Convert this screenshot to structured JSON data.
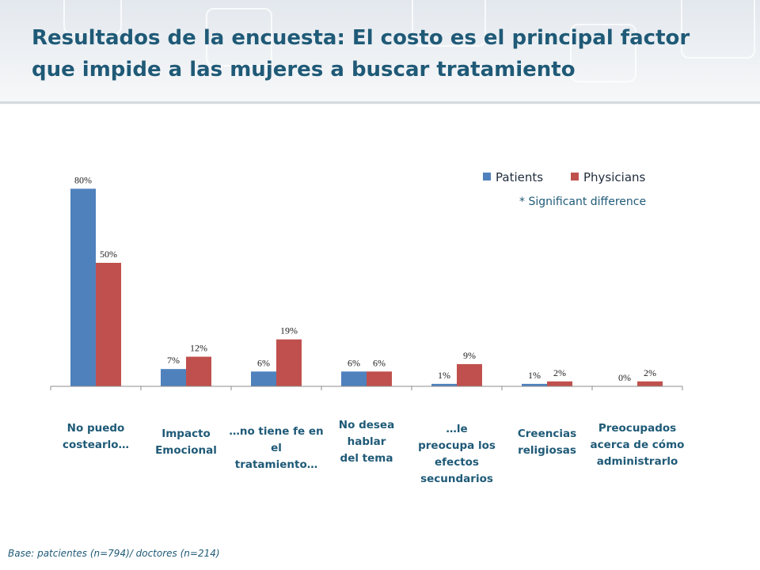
{
  "title": {
    "line1": "Resultados de la encuesta: El costo es el principal factor",
    "line2": "que impide a las mujeres a buscar tratamiento"
  },
  "note": "* Significant difference",
  "base_note": "Base: patcientes (n=794)/ doctores (n=214)",
  "colors": {
    "patients": "#4f81bd",
    "physicians": "#c0504d",
    "title": "#1f5a77"
  },
  "chart_data": {
    "type": "bar",
    "categories": [
      "No puedo costearlo…",
      "Impacto Emocional",
      "…no tiene fe en el tratamiento…",
      "No desea hablar del tema",
      "…le preocupa los efectos secundarios",
      "Creencias religiosas",
      "Preocupados acerca de cómo administrarlo"
    ],
    "category_lines": [
      [
        "No puedo",
        "costearlo…"
      ],
      [
        "Impacto",
        "Emocional"
      ],
      [
        "…no tiene fe en el",
        "tratamiento…"
      ],
      [
        "No desea",
        "hablar",
        "del tema"
      ],
      [
        "…le",
        "preocupa los",
        "efectos",
        "secundarios"
      ],
      [
        "Creencias",
        "religiosas"
      ],
      [
        "Preocupados",
        "acerca de cómo",
        "administrarlo"
      ]
    ],
    "series": [
      {
        "name": "Patients",
        "values": [
          80,
          7,
          6,
          6,
          1,
          1,
          0
        ],
        "labels": [
          "80%",
          "7%",
          "6%",
          "6%",
          "1%",
          "1%",
          "0%"
        ]
      },
      {
        "name": "Physicians",
        "values": [
          50,
          12,
          19,
          6,
          9,
          2,
          2
        ],
        "labels": [
          "50%",
          "12%",
          "19%",
          "6%",
          "9%",
          "2%",
          "2%"
        ]
      }
    ],
    "ylim": [
      0,
      100
    ],
    "legend_position": "top-right",
    "title": "",
    "xlabel": "",
    "ylabel": ""
  }
}
